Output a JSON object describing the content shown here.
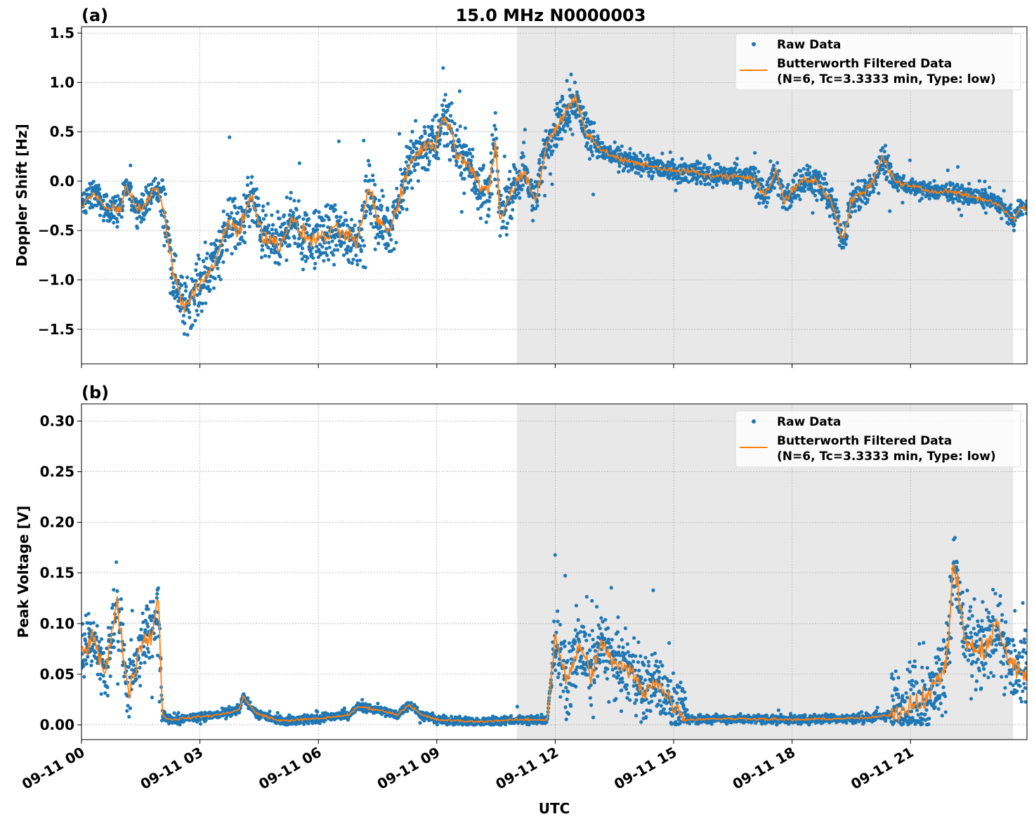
{
  "chart_data": [
    {
      "type": "scatter",
      "panel_label": "(a)",
      "title": "15.0 MHz N0000003",
      "xlabel": "",
      "ylabel": "Doppler Shift [Hz]",
      "xlim_hours": [
        0,
        23.95
      ],
      "ylim": [
        -1.85,
        1.565
      ],
      "yticks": [
        -1.5,
        -1.0,
        -0.5,
        0.0,
        0.5,
        1.0,
        1.5
      ],
      "ytick_labels": [
        "−1.5",
        "−1.0",
        "−0.5",
        "0.0",
        "0.5",
        "1.0",
        "1.5"
      ],
      "grid": true,
      "shaded_region_hours": [
        11.03,
        23.6
      ],
      "legend_position": "top-right",
      "legend": [
        "Raw Data",
        "Butterworth Filtered Data",
        "(N=6, Tc=3.3333 min, Type: low)"
      ],
      "filtered_series": {
        "name": "Butterworth Filtered Data",
        "x_hours": [
          0,
          0.3,
          0.6,
          1.0,
          1.15,
          1.4,
          1.6,
          1.9,
          2.1,
          2.3,
          2.6,
          2.9,
          3.2,
          3.5,
          3.7,
          4.0,
          4.3,
          4.6,
          5.0,
          5.3,
          5.8,
          6.2,
          6.5,
          6.9,
          7.0,
          7.3,
          7.5,
          7.8,
          8.1,
          8.4,
          8.7,
          9.0,
          9.2,
          9.5,
          9.8,
          10.1,
          10.3,
          10.5,
          10.6,
          10.9,
          11.2,
          11.5,
          11.8,
          12.2,
          12.5,
          12.8,
          13.2,
          13.8,
          14.5,
          15.0,
          15.5,
          16.0,
          16.5,
          17.0,
          17.3,
          17.6,
          17.8,
          18.2,
          18.6,
          19.0,
          19.3,
          19.5,
          20.0,
          20.3,
          20.6,
          21.0,
          21.5,
          22.0,
          22.5,
          23.0,
          23.3,
          23.6,
          23.8,
          23.95
        ],
        "y": [
          -0.25,
          -0.1,
          -0.28,
          -0.28,
          -0.05,
          -0.28,
          -0.25,
          -0.05,
          -0.3,
          -0.9,
          -1.3,
          -1.1,
          -0.95,
          -0.7,
          -0.4,
          -0.5,
          -0.15,
          -0.55,
          -0.65,
          -0.4,
          -0.6,
          -0.55,
          -0.5,
          -0.6,
          -0.6,
          -0.05,
          -0.4,
          -0.5,
          -0.1,
          0.25,
          0.35,
          0.4,
          0.7,
          0.3,
          0.2,
          -0.05,
          -0.15,
          0.4,
          -0.4,
          -0.1,
          0.1,
          -0.2,
          0.4,
          0.65,
          0.85,
          0.5,
          0.3,
          0.2,
          0.15,
          0.1,
          0.1,
          0.05,
          0.05,
          0.05,
          -0.15,
          0.1,
          -0.2,
          0.0,
          0.0,
          -0.2,
          -0.6,
          -0.2,
          -0.05,
          0.25,
          0.0,
          -0.05,
          -0.1,
          -0.1,
          -0.15,
          -0.2,
          -0.25,
          -0.4,
          -0.25,
          -0.3
        ]
      },
      "raw_series": {
        "name": "Raw Data",
        "spread_by_interval": [
          [
            0,
            2,
            0.2
          ],
          [
            2,
            10.5,
            0.4
          ],
          [
            10.5,
            13,
            0.3
          ],
          [
            13,
            17,
            0.15
          ],
          [
            17,
            20.5,
            0.22
          ],
          [
            20.5,
            24,
            0.12
          ]
        ]
      },
      "colors": {
        "raw": "#1f77b4",
        "filtered": "#ff7f0e",
        "shade": "#e8e8e8"
      }
    },
    {
      "type": "scatter",
      "panel_label": "(b)",
      "title": "",
      "xlabel": "UTC",
      "ylabel": "Peak Voltage [V]",
      "xlim_hours": [
        0,
        23.95
      ],
      "ylim": [
        -0.0146,
        0.317
      ],
      "yticks": [
        0.0,
        0.05,
        0.1,
        0.15,
        0.2,
        0.25,
        0.3
      ],
      "ytick_labels": [
        "0.00",
        "0.05",
        "0.10",
        "0.15",
        "0.20",
        "0.25",
        "0.30"
      ],
      "xtick_hours": [
        0,
        3,
        6,
        9,
        12,
        15,
        18,
        21
      ],
      "xtick_labels": [
        "09-11 00",
        "09-11 03",
        "09-11 06",
        "09-11 09",
        "09-11 12",
        "09-11 15",
        "09-11 18",
        "09-11 21"
      ],
      "grid": true,
      "shaded_region_hours": [
        11.03,
        23.6
      ],
      "legend_position": "top-right",
      "legend": [
        "Raw Data",
        "Butterworth Filtered Data",
        "(N=6, Tc=3.3333 min, Type: low)"
      ],
      "filtered_series": {
        "name": "Butterworth Filtered Data",
        "x_hours": [
          0,
          0.3,
          0.6,
          0.9,
          1.2,
          1.5,
          1.8,
          1.95,
          2.05,
          2.2,
          3,
          3.5,
          4.0,
          4.1,
          4.4,
          5,
          6,
          6.8,
          7.0,
          7.5,
          8,
          8.3,
          8.6,
          9,
          10,
          11,
          11.8,
          12.0,
          12.3,
          12.6,
          12.9,
          13.2,
          13.5,
          14.0,
          14.2,
          14.5,
          15,
          15.3,
          16,
          17,
          18,
          19,
          20,
          20.5,
          21,
          21.5,
          21.9,
          22.1,
          22.4,
          22.8,
          23.2,
          23.5,
          23.95
        ],
        "y": [
          0.07,
          0.09,
          0.05,
          0.12,
          0.03,
          0.08,
          0.09,
          0.13,
          0.01,
          0.005,
          0.008,
          0.01,
          0.015,
          0.028,
          0.012,
          0.004,
          0.006,
          0.01,
          0.018,
          0.015,
          0.01,
          0.02,
          0.01,
          0.005,
          0.003,
          0.005,
          0.005,
          0.09,
          0.04,
          0.08,
          0.05,
          0.08,
          0.06,
          0.05,
          0.03,
          0.045,
          0.02,
          0.005,
          0.006,
          0.006,
          0.005,
          0.006,
          0.007,
          0.01,
          0.02,
          0.03,
          0.06,
          0.16,
          0.08,
          0.07,
          0.1,
          0.06,
          0.05
        ]
      },
      "raw_series": {
        "name": "Raw Data",
        "spread_by_interval": [
          [
            0,
            2.05,
            0.045
          ],
          [
            2.05,
            11.9,
            0.006
          ],
          [
            11.9,
            15.3,
            0.045
          ],
          [
            15.3,
            20.5,
            0.006
          ],
          [
            20.5,
            24,
            0.055
          ]
        ]
      },
      "colors": {
        "raw": "#1f77b4",
        "filtered": "#ff7f0e",
        "shade": "#e8e8e8"
      }
    }
  ]
}
